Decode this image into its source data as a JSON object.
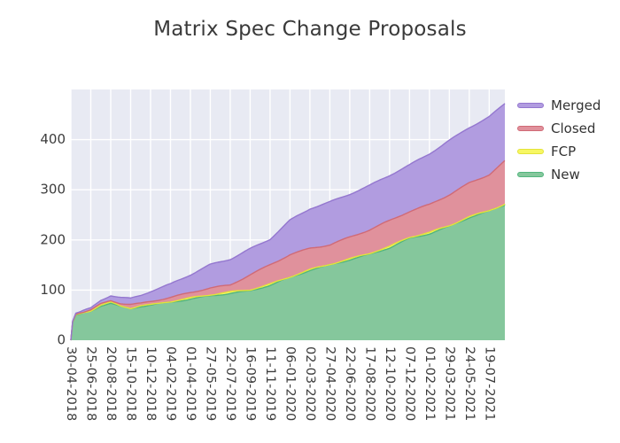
{
  "chart": {
    "title": "Matrix Spec Change Proposals"
  },
  "legend": {
    "position": "right",
    "items": [
      {
        "label": "Merged",
        "series": "Merged"
      },
      {
        "label": "Closed",
        "series": "Closed"
      },
      {
        "label": "FCP",
        "series": "FCP"
      },
      {
        "label": "New",
        "series": "New"
      }
    ]
  },
  "chart_data": {
    "type": "area",
    "stacked": true,
    "title": "Matrix Spec Change Proposals",
    "xlabel": "",
    "ylabel": "",
    "x_unit": "days since 2018-04-30",
    "xlim_days": [
      0,
      1220
    ],
    "ylim": [
      0,
      500
    ],
    "yticks": [
      0,
      100,
      200,
      300,
      400
    ],
    "x_tick_interval_days": 56,
    "x_tick_labels": [
      "30-04-2018",
      "25-06-2018",
      "20-08-2018",
      "15-10-2018",
      "10-12-2018",
      "04-02-2019",
      "01-04-2019",
      "27-05-2019",
      "22-07-2019",
      "16-09-2019",
      "11-11-2019",
      "06-01-2020",
      "02-03-2020",
      "27-04-2020",
      "22-06-2020",
      "17-08-2020",
      "12-10-2020",
      "07-12-2020",
      "01-02-2021",
      "29-03-2021",
      "24-05-2021",
      "19-07-2021"
    ],
    "x_days": [
      0,
      5,
      14,
      56,
      84,
      112,
      140,
      168,
      196,
      224,
      280,
      336,
      392,
      448,
      504,
      560,
      616,
      672,
      728,
      784,
      840,
      896,
      952,
      1008,
      1064,
      1120,
      1176,
      1220
    ],
    "series": [
      {
        "name": "New",
        "fill": "#85c79c",
        "line": "#52b57d",
        "values": [
          0,
          35,
          50,
          57,
          68,
          73,
          66,
          62,
          67,
          70,
          76,
          83,
          89,
          94,
          98,
          109,
          124,
          139,
          150,
          161,
          172,
          185,
          203,
          212,
          226,
          244,
          257,
          270
        ]
      },
      {
        "name": "FCP",
        "fill": "#f7f763",
        "line": "#e3e33a",
        "values": [
          0,
          1,
          1,
          1,
          1,
          2,
          2,
          2,
          2,
          1,
          2,
          2,
          2,
          2,
          2,
          2,
          2,
          2,
          2,
          2,
          2,
          2,
          2,
          2,
          2,
          2,
          2,
          2
        ]
      },
      {
        "name": "Closed",
        "fill": "#e0919c",
        "line": "#d06a76",
        "values": [
          0,
          1,
          1,
          2,
          3,
          4,
          6,
          8,
          5,
          7,
          8,
          10,
          13,
          13,
          30,
          39,
          45,
          43,
          39,
          43,
          46,
          51,
          51,
          56,
          62,
          68,
          72,
          86
        ]
      },
      {
        "name": "Merged",
        "fill": "#b19ce0",
        "line": "#9477cf",
        "values": [
          0,
          1,
          2,
          4,
          8,
          11,
          12,
          12,
          16,
          20,
          26,
          35,
          46,
          52,
          52,
          52,
          69,
          79,
          85,
          85,
          88,
          90,
          93,
          102,
          109,
          111,
          115,
          114
        ]
      }
    ],
    "plot_background": "#e8eaf3",
    "grid_color": "#ffffff",
    "text_color": "#3d3d3d",
    "grid": true,
    "legend_position": "right"
  }
}
